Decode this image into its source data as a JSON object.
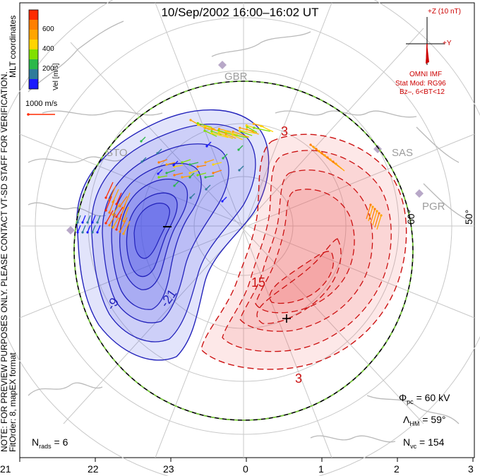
{
  "title": "10/Sep/2002 16:00–16:02 UT",
  "colorbar": {
    "label": "Vel [m/s]",
    "ticks": [
      "600",
      "400",
      "200"
    ],
    "colors": [
      "#ff2a00",
      "#ff8c00",
      "#ffd400",
      "#80e000",
      "#2cb84a",
      "#2e8b8b",
      "#2b4fd6",
      "#1a1aff"
    ]
  },
  "coord_label": "MLT coordinates",
  "scale_vector": "1000 m/s",
  "note_line1": "NOTE: FOR PREVIEW PURPOSES ONLY. PLEASE CONTACT VT-SD STAFF FOR VERIFICATION.",
  "note_line2": "FitOrder: 8, mapEX format",
  "imf": {
    "z_label": "+Z (10 nT)",
    "y_label": "+Y",
    "source": "OMNI IMF",
    "model_line1": "Stat Mod: RG96",
    "model_line2": "Bz–, 6<BT<12"
  },
  "stations": [
    "GBR",
    "STO",
    "SAS",
    "PGR"
  ],
  "lat_labels": [
    "60°",
    "50°"
  ],
  "contour_labels": {
    "negative": [
      "-21",
      "-9"
    ],
    "positive": [
      "3",
      "15",
      "3"
    ]
  },
  "potential_markers": {
    "min": "–",
    "max": "+"
  },
  "stats": {
    "phi_symbol": "Φ",
    "phi_sub": "pc",
    "phi_value": "= 60 kV",
    "lambda_symbol": "Λ",
    "lambda_sub": "HM",
    "lambda_value": "= 59°",
    "nvc_symbol": "N",
    "nvc_sub": "vc",
    "nvc_value": "= 154",
    "nrads_symbol": "N",
    "nrads_sub": "rads",
    "nrads_value": "= 6"
  },
  "mlt_ticks": [
    "21",
    "22",
    "23",
    "0",
    "1",
    "2",
    "3"
  ],
  "colors": {
    "neg_fill": "#4d55e8",
    "pos_fill": "#ee5a5a",
    "neg_line": "#2222bb",
    "pos_line": "#cc1111",
    "coast": "#b9b9b9",
    "grid": "#c8c8c8",
    "hmb_dash": "#7bd23a"
  }
}
